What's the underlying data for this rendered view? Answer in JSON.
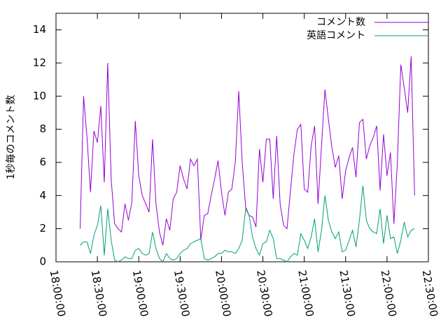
{
  "chart_data": {
    "type": "line",
    "ylabel": "1秒毎のコメント数",
    "x": [
      "18:17:30",
      "18:20:00",
      "18:22:30",
      "18:25:00",
      "18:27:30",
      "18:30:00",
      "18:32:30",
      "18:35:00",
      "18:37:30",
      "18:40:00",
      "18:42:30",
      "18:45:00",
      "18:47:30",
      "18:50:00",
      "18:52:30",
      "18:55:00",
      "18:57:30",
      "19:00:00",
      "19:02:30",
      "19:05:00",
      "19:07:30",
      "19:10:00",
      "19:12:30",
      "19:15:00",
      "19:17:30",
      "19:20:00",
      "19:22:30",
      "19:25:00",
      "19:27:30",
      "19:30:00",
      "19:32:30",
      "19:35:00",
      "19:37:30",
      "19:40:00",
      "19:42:30",
      "19:45:00",
      "19:47:30",
      "19:50:00",
      "19:52:30",
      "19:55:00",
      "19:57:30",
      "20:00:00",
      "20:02:30",
      "20:05:00",
      "20:07:30",
      "20:10:00",
      "20:12:30",
      "20:15:00",
      "20:17:30",
      "20:20:00",
      "20:22:30",
      "20:25:00",
      "20:27:30",
      "20:30:00",
      "20:32:30",
      "20:35:00",
      "20:37:30",
      "20:40:00",
      "20:42:30",
      "20:45:00",
      "20:47:30",
      "20:50:00",
      "20:52:30",
      "20:55:00",
      "20:57:30",
      "21:00:00",
      "21:02:30",
      "21:05:00",
      "21:07:30",
      "21:10:00",
      "21:12:30",
      "21:15:00",
      "21:17:30",
      "21:20:00",
      "21:22:30",
      "21:25:00",
      "21:27:30",
      "21:30:00",
      "21:32:30",
      "21:35:00",
      "21:37:30",
      "21:40:00",
      "21:42:30",
      "21:45:00",
      "21:47:30",
      "21:50:00",
      "21:52:30",
      "21:55:00",
      "21:57:30",
      "22:00:00",
      "22:02:30",
      "22:05:00",
      "22:07:30",
      "22:10:00",
      "22:12:30",
      "22:15:00",
      "22:17:30",
      "22:20:00"
    ],
    "series": [
      {
        "name": "コメント数",
        "color": "#9400d3",
        "values": [
          2.0,
          10.0,
          7.5,
          4.2,
          7.9,
          7.2,
          9.4,
          4.8,
          12.0,
          5.0,
          2.3,
          2.0,
          1.8,
          3.5,
          2.5,
          3.6,
          8.5,
          5.2,
          4.0,
          3.5,
          3.0,
          7.4,
          3.5,
          1.8,
          1.0,
          2.6,
          1.9,
          3.8,
          4.2,
          5.8,
          5.0,
          4.4,
          6.2,
          5.8,
          6.2,
          1.3,
          2.8,
          2.9,
          4.0,
          5.0,
          6.1,
          4.2,
          2.8,
          4.2,
          4.4,
          6.0,
          10.3,
          6.0,
          3.3,
          2.8,
          2.7,
          2.1,
          6.8,
          4.8,
          7.4,
          7.4,
          3.8,
          7.6,
          3.5,
          2.2,
          2.0,
          4.3,
          6.5,
          8.0,
          8.3,
          4.4,
          4.2,
          7.0,
          8.2,
          3.5,
          7.0,
          10.4,
          8.6,
          6.9,
          5.7,
          6.4,
          3.8,
          5.5,
          6.3,
          6.9,
          5.1,
          8.4,
          8.6,
          6.2,
          7.0,
          7.5,
          8.2,
          4.3,
          7.7,
          5.2,
          6.6,
          2.3,
          6.0,
          11.9,
          10.5,
          9.0,
          12.4,
          4.0
        ]
      },
      {
        "name": "英語コメント",
        "color": "#009e73",
        "values": [
          1.0,
          1.2,
          1.2,
          0.5,
          1.6,
          2.2,
          3.4,
          0.4,
          3.2,
          1.3,
          0.1,
          0.0,
          0.1,
          0.3,
          0.2,
          0.2,
          0.7,
          0.8,
          0.5,
          0.4,
          0.5,
          1.8,
          0.8,
          0.2,
          0.0,
          0.5,
          0.2,
          0.1,
          0.2,
          0.5,
          0.7,
          0.8,
          1.1,
          1.2,
          1.3,
          1.4,
          0.2,
          0.1,
          0.2,
          0.3,
          0.5,
          0.5,
          0.7,
          0.6,
          0.6,
          0.5,
          0.8,
          1.3,
          3.2,
          2.8,
          1.5,
          0.8,
          0.4,
          1.1,
          1.2,
          1.9,
          1.4,
          0.2,
          0.2,
          0.1,
          0.0,
          0.3,
          0.5,
          0.4,
          1.7,
          1.3,
          0.8,
          1.5,
          2.6,
          0.6,
          1.9,
          4.0,
          2.5,
          1.8,
          1.4,
          1.8,
          0.6,
          0.7,
          1.3,
          1.9,
          0.9,
          2.5,
          4.6,
          2.5,
          2.0,
          1.8,
          1.7,
          3.2,
          1.1,
          2.8,
          1.4,
          1.5,
          0.5,
          1.3,
          2.4,
          1.5,
          1.9,
          2.0
        ]
      }
    ],
    "xlim": [
      "18:00:00",
      "22:30:00"
    ],
    "xticks": [
      "18:00:00",
      "18:30:00",
      "19:00:00",
      "19:30:00",
      "20:00:00",
      "20:30:00",
      "21:00:00",
      "21:30:00",
      "22:00:00",
      "22:30:00"
    ],
    "ylim": [
      0,
      15
    ],
    "yticks": [
      0,
      2,
      4,
      6,
      8,
      10,
      12,
      14
    ],
    "legend": "top-right"
  }
}
